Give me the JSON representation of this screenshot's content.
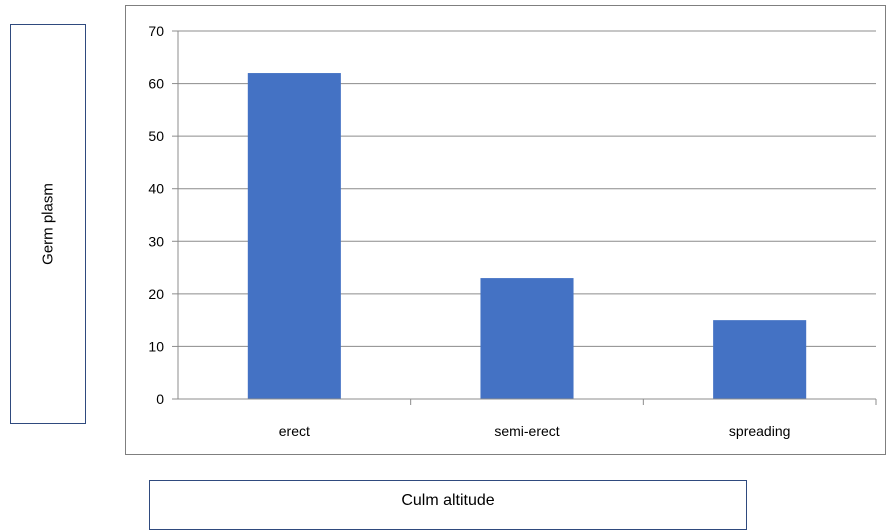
{
  "chart_data": {
    "type": "bar",
    "categories": [
      "erect",
      "semi-erect",
      "spreading"
    ],
    "values": [
      62,
      23,
      15
    ],
    "xlabel": "Culm altitude",
    "ylabel": "Germ plasm",
    "ylim": [
      0,
      70
    ],
    "yticks": [
      0,
      10,
      20,
      30,
      40,
      50,
      60,
      70
    ],
    "grid": true,
    "bar_color": "#4472c4",
    "grid_color": "#8c8c8c"
  }
}
